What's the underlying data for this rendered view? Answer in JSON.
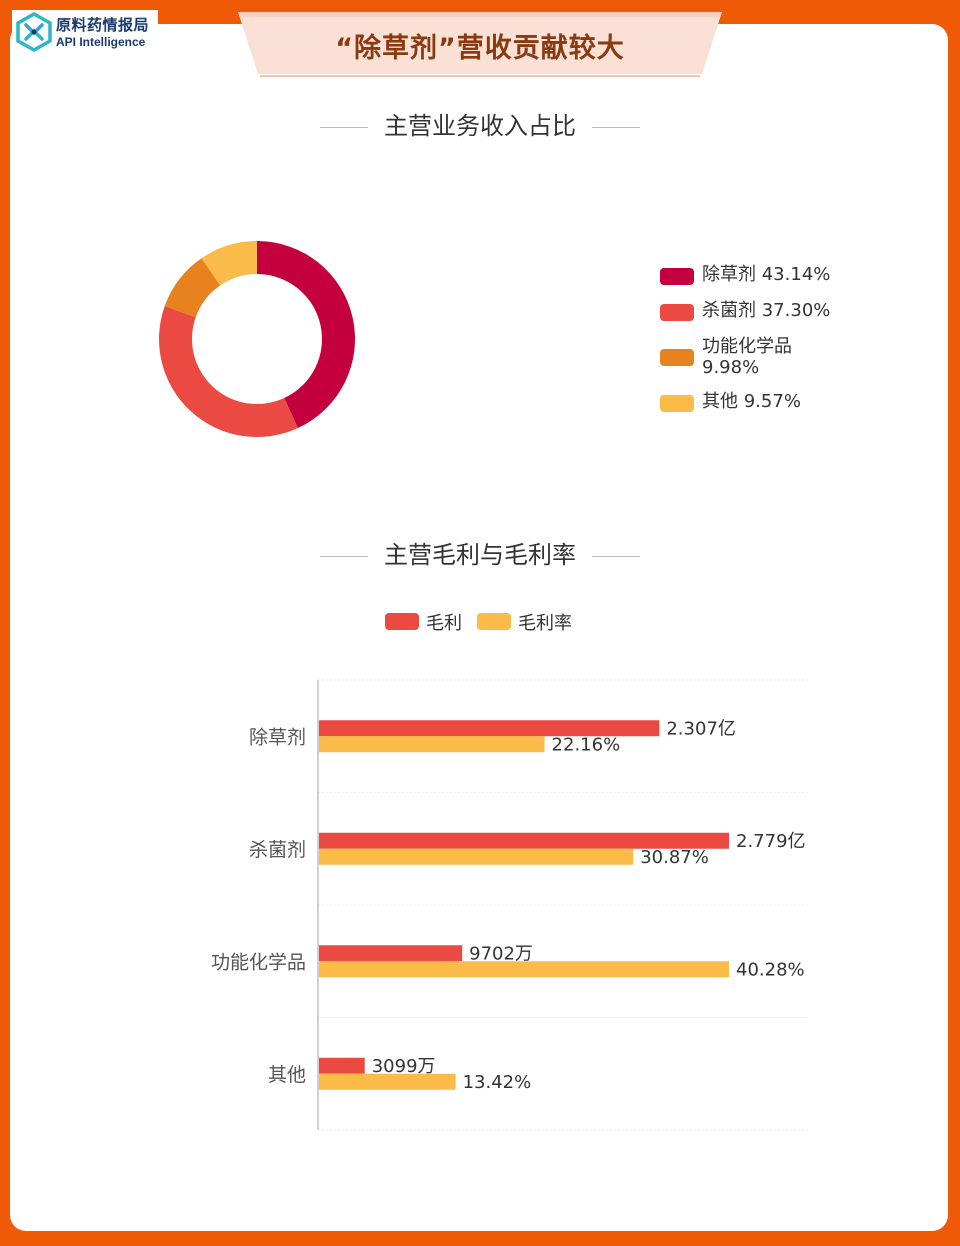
{
  "logo": {
    "name_cn": "原料药情报局",
    "name_en": "API Intelligence"
  },
  "banner": {
    "title": "“除草剂”营收贡献较大"
  },
  "colors": {
    "background": "#ee5a06",
    "herbicide": "#c3003d",
    "fungicide": "#ea4a42",
    "functional": "#e8821f",
    "other": "#fbbb48",
    "gross_profit": "#ea4a42",
    "gross_margin": "#fbbb48"
  },
  "chart_data": [
    {
      "type": "pie",
      "title": "主营业务收入占比",
      "donut": true,
      "legend_position": "right",
      "slices": [
        {
          "label": "除草剂",
          "value": 43.14,
          "value_label": "43.14%",
          "color": "#c3003d"
        },
        {
          "label": "杀菌剂",
          "value": 37.3,
          "value_label": "37.30%",
          "color": "#ea4a42"
        },
        {
          "label": "功能化学品",
          "value": 9.98,
          "value_label": "9.98%",
          "color": "#e8821f"
        },
        {
          "label": "其他",
          "value": 9.57,
          "value_label": "9.57%",
          "color": "#fbbb48"
        }
      ]
    },
    {
      "type": "bar",
      "orientation": "horizontal",
      "title": "主营毛利与毛利率",
      "legend_position": "top",
      "grid": true,
      "categories": [
        "除草剂",
        "杀菌剂",
        "功能化学品",
        "其他"
      ],
      "series": [
        {
          "name": "毛利",
          "color": "#ea4a42",
          "values": [
            23070,
            27790,
            9702,
            3099
          ],
          "labels": [
            "2.307亿",
            "2.779亿",
            "9702万",
            "3099万"
          ]
        },
        {
          "name": "毛利率",
          "color": "#fbbb48",
          "values": [
            22.16,
            30.87,
            40.28,
            13.42
          ],
          "labels": [
            "22.16%",
            "30.87%",
            "40.28%",
            "13.42%"
          ]
        }
      ]
    }
  ]
}
